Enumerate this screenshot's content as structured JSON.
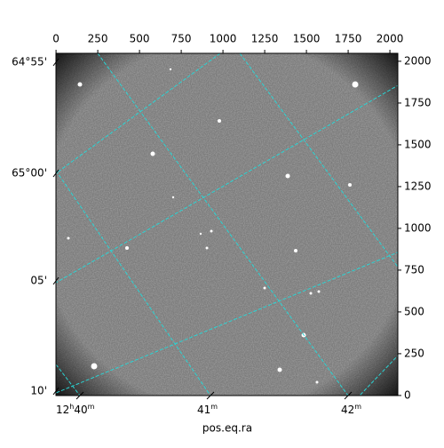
{
  "chart_data": {
    "type": "image",
    "xlabel": "pos.eq.ra",
    "xlim": [
      -0.5,
      2047.5
    ],
    "ylim": [
      -0.5,
      2047.5
    ],
    "xticks": [
      0,
      250,
      500,
      750,
      1000,
      1250,
      1500,
      1750,
      2000
    ],
    "yticks": [
      0,
      250,
      500,
      750,
      1000,
      1250,
      1500,
      1750,
      2000
    ],
    "dec_labels": [
      "64°55'",
      "65°00'",
      "05'",
      "10'"
    ],
    "ra_labels": [
      [
        "12",
        "h",
        "40",
        "m"
      ],
      [
        "41",
        "m"
      ],
      [
        "42",
        "m"
      ]
    ]
  }
}
